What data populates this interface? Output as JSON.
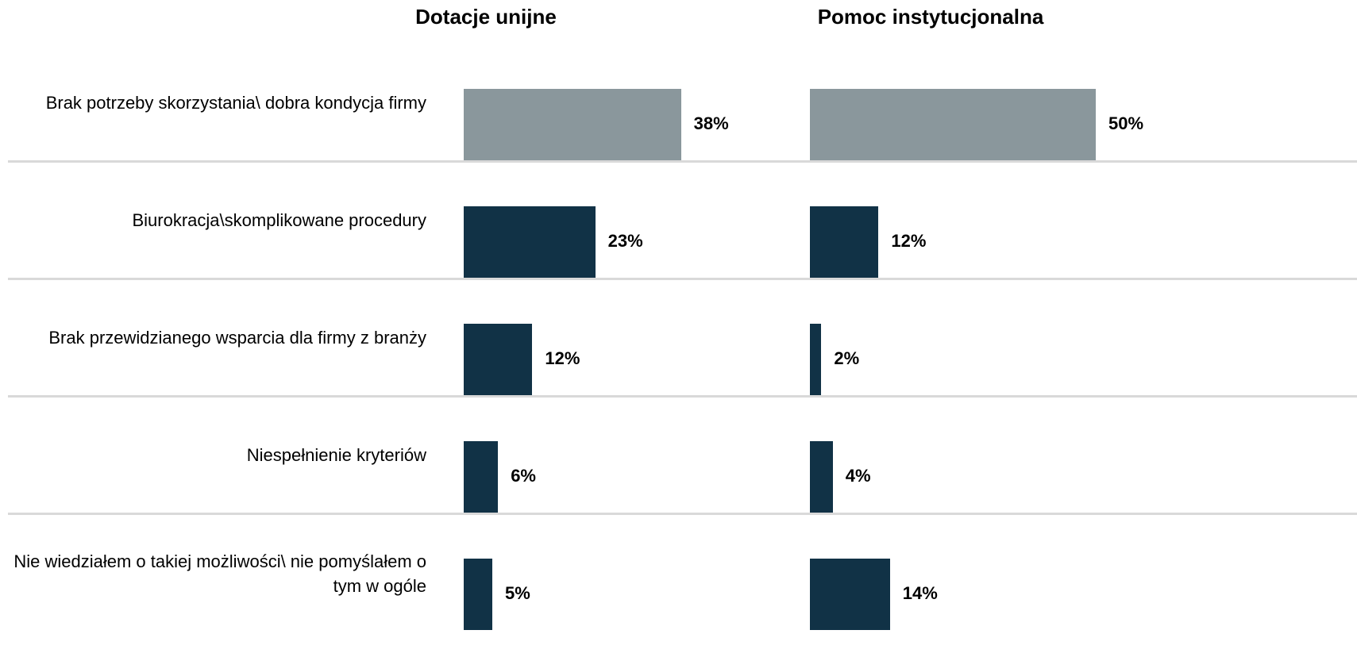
{
  "chart_data": {
    "type": "bar",
    "orientation": "horizontal",
    "categories": [
      "Brak potrzeby skorzystania\\ dobra kondycja firmy",
      "Biurokracja\\skomplikowane procedury",
      "Brak przewidzianego wsparcia dla firmy z branży",
      "Niespełnienie kryteriów",
      "Nie wiedziałem o takiej możliwości\\ nie pomyślałem o tym w ogóle"
    ],
    "series": [
      {
        "name": "Dotacje unijne",
        "values": [
          38,
          23,
          12,
          6,
          5
        ],
        "value_labels": [
          "38%",
          "23%",
          "12%",
          "6%",
          "5%"
        ]
      },
      {
        "name": "Pomoc instytucjonalna",
        "values": [
          50,
          12,
          2,
          4,
          14
        ],
        "value_labels": [
          "50%",
          "12%",
          "2%",
          "4%",
          "14%"
        ]
      }
    ],
    "unit": "%",
    "xlim": [
      0,
      100
    ],
    "grid": false,
    "legend": "none",
    "colors": {
      "highlight_bar": "#8a979c",
      "bar": "#113246",
      "separator": "#d9d9d9"
    }
  }
}
